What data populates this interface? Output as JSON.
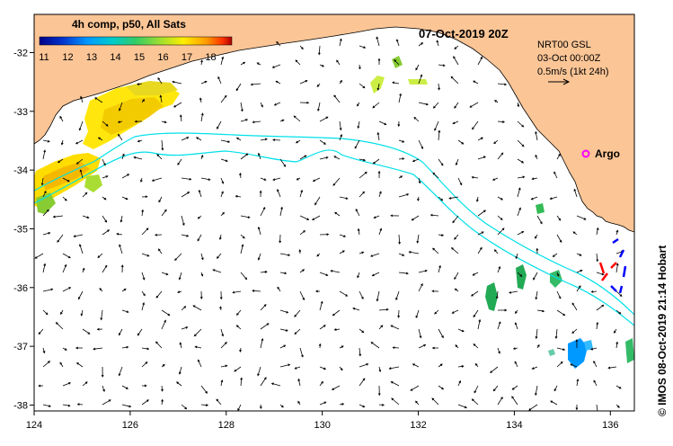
{
  "colorbar": {
    "title": "4h comp, p50, All Sats",
    "ticks": [
      "11",
      "12",
      "13",
      "14",
      "15",
      "16",
      "17",
      "18"
    ],
    "colors": [
      "#00008b",
      "#0033cc",
      "#0099ff",
      "#00cccc",
      "#33cc66",
      "#99dd33",
      "#ffee00",
      "#ff9900",
      "#ff3300",
      "#aa0000"
    ]
  },
  "date_title": "07-Oct-2019 20Z",
  "info": {
    "line1": "NRT00 GSL",
    "line2": "03-Oct 00:00Z",
    "line3": "0.5m/s (1kt 24h)"
  },
  "argo_label": "Argo",
  "credit": "© IMOS 08-Oct-2019 21:14 Hobart",
  "x_ticks": [
    "124",
    "126",
    "128",
    "130",
    "132",
    "134",
    "136"
  ],
  "y_ticks": [
    "-32",
    "-33",
    "-34",
    "-35",
    "-36",
    "-37",
    "-38"
  ],
  "colors": {
    "land": "#fbc596",
    "coast": "#000000",
    "isobath": "#00e0e8",
    "argo": "#ff00ff",
    "eddy_red": "#ff0000",
    "eddy_blue": "#0000ff"
  }
}
